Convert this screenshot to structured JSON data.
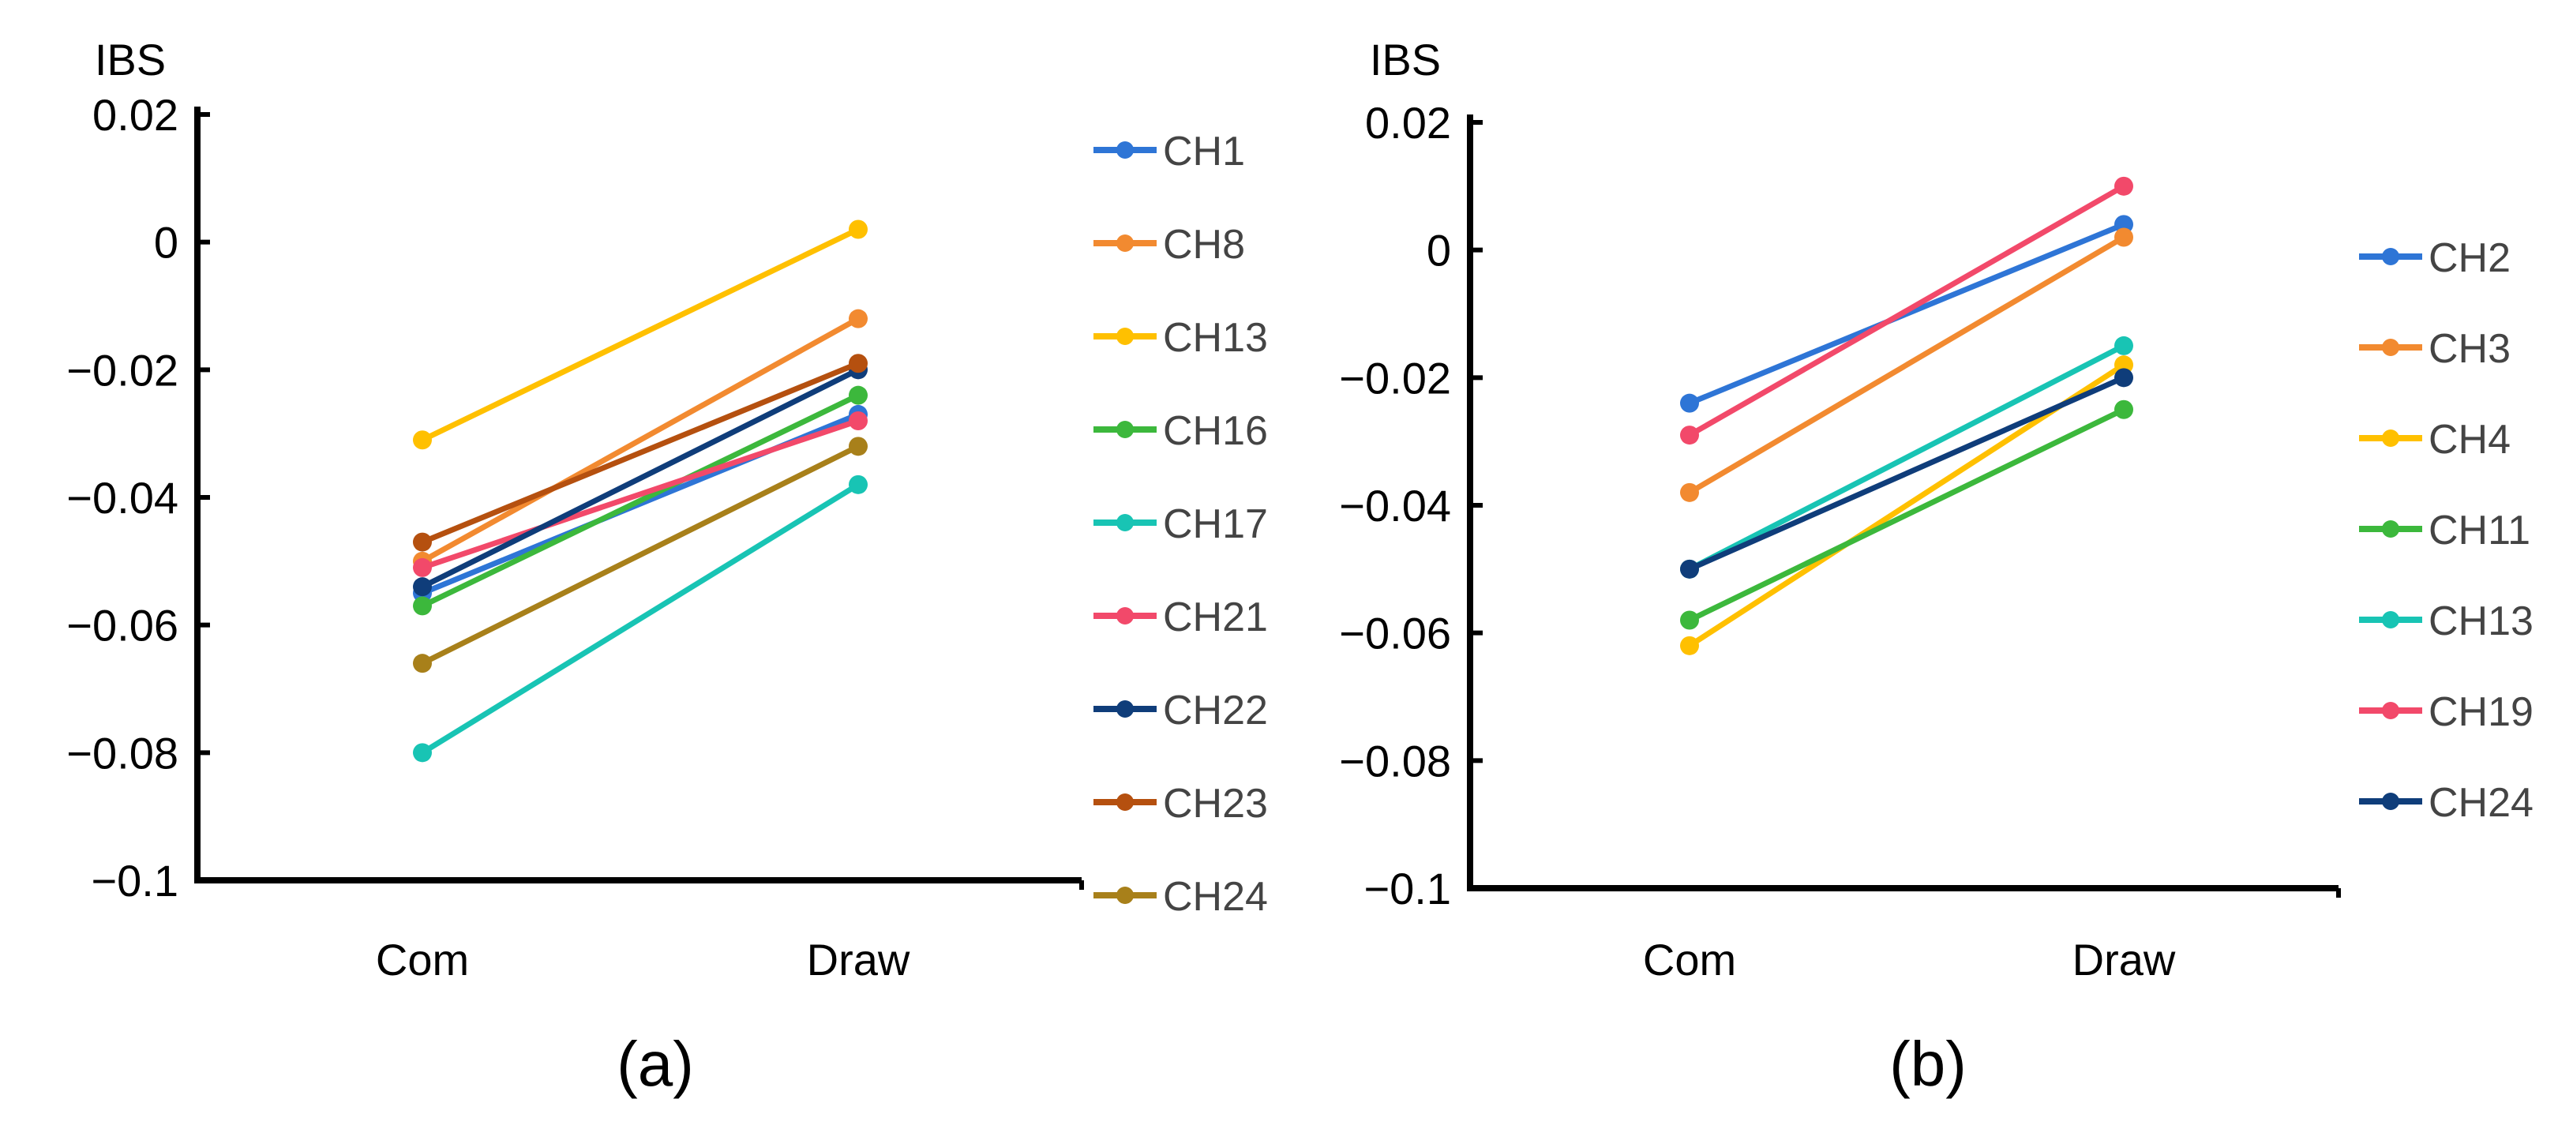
{
  "chart_data": [
    {
      "type": "line",
      "panel_label": "(a)",
      "ylabel": "IBS",
      "categories": [
        "Com",
        "Draw"
      ],
      "ylim": [
        -0.1,
        0.02
      ],
      "yticks": [
        0.02,
        0,
        -0.02,
        -0.04,
        -0.06,
        -0.08,
        -0.1
      ],
      "ytick_labels": [
        "0.02",
        "0",
        "−0.02",
        "−0.04",
        "−0.06",
        "−0.08",
        "−0.1"
      ],
      "legend_position": "right",
      "series": [
        {
          "name": "CH1",
          "color": "#2e75d6",
          "values": [
            -0.055,
            -0.027
          ]
        },
        {
          "name": "CH8",
          "color": "#f28a30",
          "values": [
            -0.05,
            -0.012
          ]
        },
        {
          "name": "CH13",
          "color": "#ffc000",
          "values": [
            -0.031,
            0.002
          ]
        },
        {
          "name": "CH16",
          "color": "#3cb83c",
          "values": [
            -0.057,
            -0.024
          ]
        },
        {
          "name": "CH17",
          "color": "#18c4b4",
          "values": [
            -0.08,
            -0.038
          ]
        },
        {
          "name": "CH21",
          "color": "#f2496a",
          "values": [
            -0.051,
            -0.028
          ]
        },
        {
          "name": "CH22",
          "color": "#0f3d7a",
          "values": [
            -0.054,
            -0.02
          ]
        },
        {
          "name": "CH23",
          "color": "#b5500f",
          "values": [
            -0.047,
            -0.019
          ]
        },
        {
          "name": "CH24",
          "color": "#a8801a",
          "values": [
            -0.066,
            -0.032
          ]
        }
      ]
    },
    {
      "type": "line",
      "panel_label": "(b)",
      "ylabel": "IBS",
      "categories": [
        "Com",
        "Draw"
      ],
      "ylim": [
        -0.1,
        0.02
      ],
      "yticks": [
        0.02,
        0,
        -0.02,
        -0.04,
        -0.06,
        -0.08,
        -0.1
      ],
      "ytick_labels": [
        "0.02",
        "0",
        "−0.02",
        "−0.04",
        "−0.06",
        "−0.08",
        "−0.1"
      ],
      "legend_position": "right",
      "series": [
        {
          "name": "CH2",
          "color": "#2e75d6",
          "values": [
            -0.024,
            0.004
          ]
        },
        {
          "name": "CH3",
          "color": "#f28a30",
          "values": [
            -0.038,
            0.002
          ]
        },
        {
          "name": "CH4",
          "color": "#ffc000",
          "values": [
            -0.062,
            -0.018
          ]
        },
        {
          "name": "CH11",
          "color": "#3cb83c",
          "values": [
            -0.058,
            -0.025
          ]
        },
        {
          "name": "CH13",
          "color": "#18c4b4",
          "values": [
            -0.05,
            -0.015
          ]
        },
        {
          "name": "CH19",
          "color": "#f2496a",
          "values": [
            -0.029,
            0.01
          ]
        },
        {
          "name": "CH24",
          "color": "#0f3d7a",
          "values": [
            -0.05,
            -0.02
          ]
        }
      ]
    }
  ]
}
